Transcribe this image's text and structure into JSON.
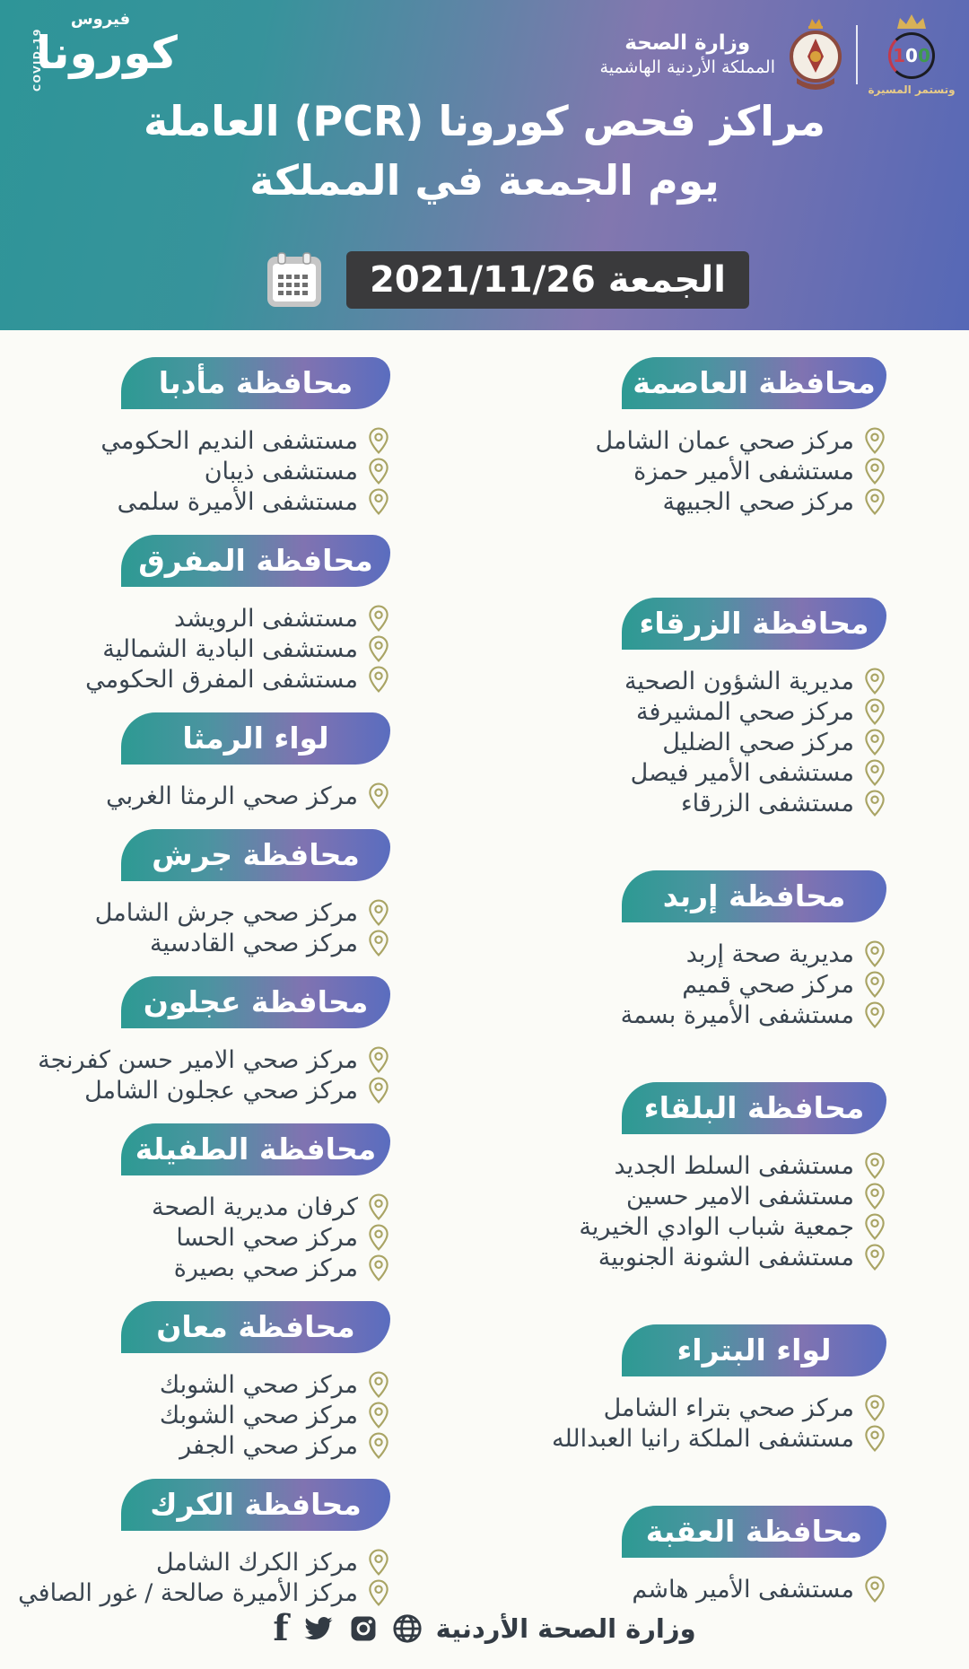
{
  "brand": {
    "covid_vertical": "COVID-19",
    "virus_small": "فيروس",
    "virus_big": "كورونا"
  },
  "ministry": {
    "name": "وزارة الصحة",
    "kingdom": "المملكة الأردنية الهاشمية"
  },
  "centennial": {
    "digits": [
      {
        "t": "1",
        "c": "#c9404e"
      },
      {
        "t": "0",
        "c": "#ffffff"
      },
      {
        "t": "0",
        "c": "#3f9a4d"
      }
    ],
    "slogan": "وتستمر المسيرة"
  },
  "title": {
    "line1": "مراكز فحص كورونا (PCR) العاملة",
    "line2": "يوم الجمعة في المملكة"
  },
  "date": {
    "label": "الجمعة 2021/11/26"
  },
  "columns": {
    "left": [
      {
        "title": "محافظة مأدبا",
        "items": [
          "مستشفى النديم الحكومي",
          "مستشفى ذيبان",
          "مستشفى الأميرة سلمى"
        ]
      },
      {
        "title": "محافظة المفرق",
        "items": [
          "مستشفى الرويشد",
          "مستشفى البادية الشمالية",
          "مستشفى المفرق الحكومي"
        ]
      },
      {
        "title": "لواء الرمثا",
        "items": [
          "مركز صحي الرمثا الغربي"
        ]
      },
      {
        "title": "محافظة جرش",
        "items": [
          "مركز صحي جرش الشامل",
          "مركز صحي القادسية"
        ]
      },
      {
        "title": "محافظة عجلون",
        "items": [
          "مركز صحي الامير حسن كفرنجة",
          "مركز صحي عجلون الشامل"
        ]
      },
      {
        "title": "محافظة الطفيلة",
        "items": [
          "كرفان مديرية الصحة",
          "مركز صحي الحسا",
          "مركز صحي بصيرة"
        ]
      },
      {
        "title": "محافظة معان",
        "items": [
          "مركز صحي الشوبك",
          "مركز صحي الشوبك",
          "مركز صحي الجفر"
        ]
      },
      {
        "title": "محافظة الكرك",
        "items": [
          "مركز الكرك الشامل",
          "مركز الأميرة صالحة / غور الصافي"
        ]
      }
    ],
    "right": [
      {
        "title": "محافظة العاصمة",
        "items": [
          "مركز صحي عمان الشامل",
          "مستشفى الأمير حمزة",
          "مركز صحي الجبيهة"
        ]
      },
      {
        "title": "محافظة الزرقاء",
        "items": [
          "مديرية الشؤون الصحية",
          "مركز صحي المشيرفة",
          "مركز صحي الضليل",
          "مستشفى الأمير فيصل",
          "مستشفى الزرقاء"
        ]
      },
      {
        "title": "محافظة إربد",
        "items": [
          "مديرية صحة إربد",
          "مركز صحي قميم",
          "مستشفى الأميرة بسمة"
        ]
      },
      {
        "title": "محافظة البلقاء",
        "items": [
          "مستشفى السلط الجديد",
          "مستشفى الامير حسين",
          "جمعية شباب الوادي الخيرية",
          "مستشفى الشونة الجنوبية"
        ]
      },
      {
        "title": "لواء البتراء",
        "items": [
          "مركز صحي بتراء الشامل",
          "مستشفى الملكة رانيا العبدالله"
        ]
      },
      {
        "title": "محافظة العقبة",
        "items": [
          "مستشفى الأمير هاشم"
        ]
      }
    ]
  },
  "footer": {
    "text": "وزارة الصحة الأردنية",
    "icons": [
      "facebook",
      "twitter",
      "instagram",
      "globe"
    ]
  },
  "colors": {
    "teal": "#2d9a93",
    "purple": "#8073b1",
    "blue": "#5a6dbf",
    "badge_bg": "#3a3a3c",
    "pin": "#a9a464",
    "item_text": "#3a4550"
  }
}
